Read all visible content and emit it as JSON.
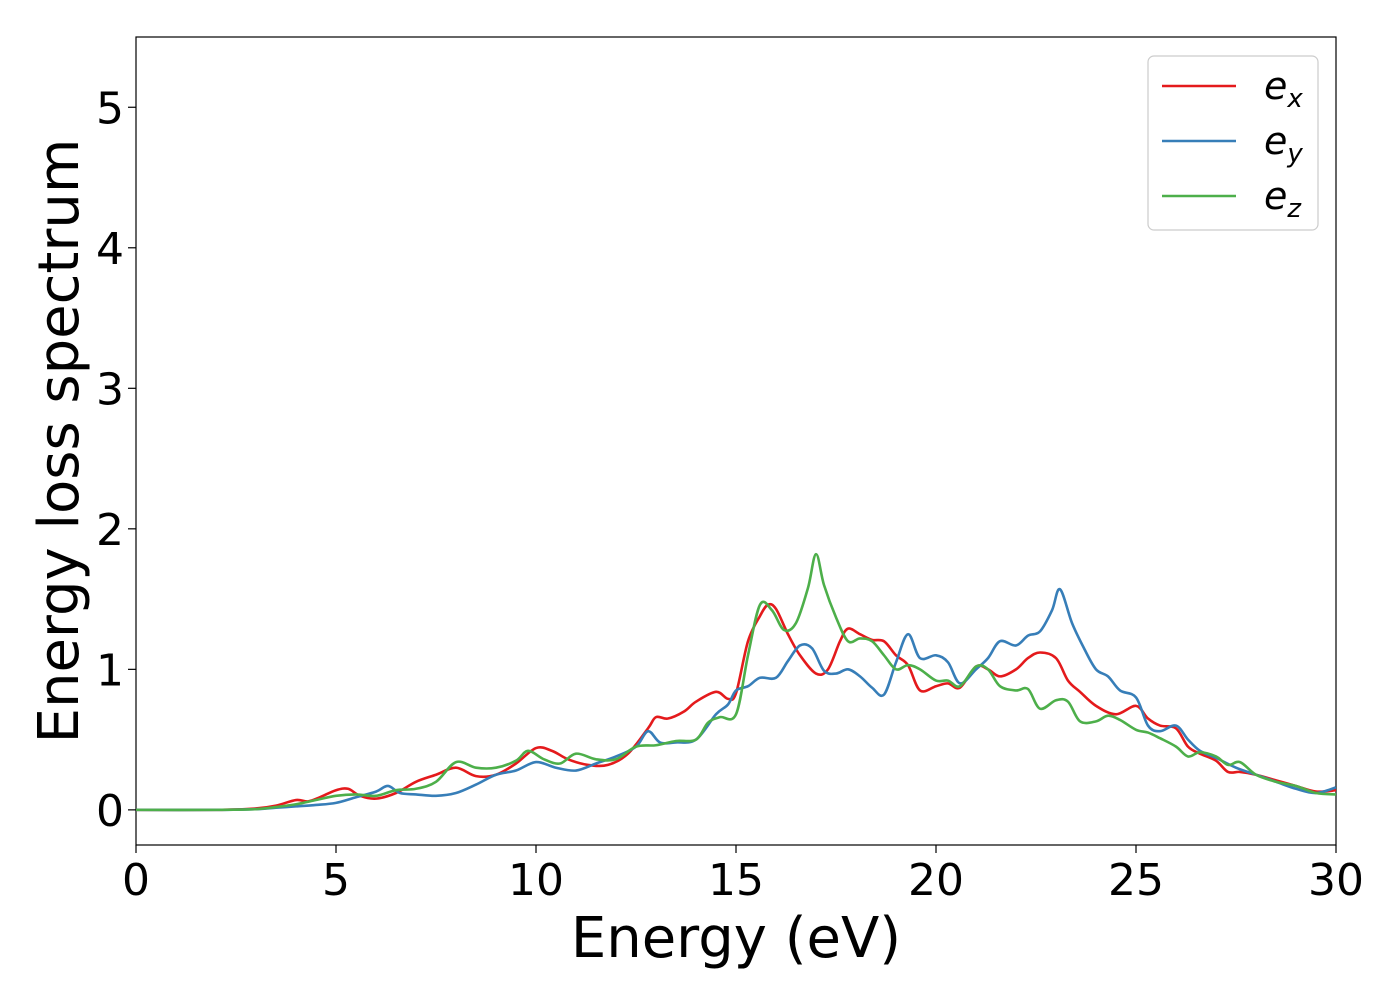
{
  "chart_data": {
    "type": "line",
    "xlabel": "Energy (eV)",
    "ylabel": "Energy loss spectrum",
    "xlim": [
      0,
      30
    ],
    "ylim": [
      -0.25,
      5.5
    ],
    "x_ticks": [
      0,
      5,
      10,
      15,
      20,
      25,
      30
    ],
    "y_ticks": [
      0,
      1,
      2,
      3,
      4,
      5
    ],
    "grid": false,
    "legend_position": "top-right",
    "series": [
      {
        "name": "e",
        "subscript": "x",
        "color": "#e41a1c",
        "points": [
          [
            0,
            0
          ],
          [
            2,
            0
          ],
          [
            3,
            0.01
          ],
          [
            3.5,
            0.03
          ],
          [
            4,
            0.07
          ],
          [
            4.3,
            0.06
          ],
          [
            4.6,
            0.09
          ],
          [
            5,
            0.14
          ],
          [
            5.3,
            0.15
          ],
          [
            5.6,
            0.1
          ],
          [
            6,
            0.08
          ],
          [
            6.5,
            0.12
          ],
          [
            7,
            0.2
          ],
          [
            7.5,
            0.25
          ],
          [
            8,
            0.3
          ],
          [
            8.5,
            0.24
          ],
          [
            9,
            0.25
          ],
          [
            9.5,
            0.33
          ],
          [
            10,
            0.44
          ],
          [
            10.4,
            0.42
          ],
          [
            10.8,
            0.36
          ],
          [
            11.3,
            0.32
          ],
          [
            11.8,
            0.32
          ],
          [
            12.3,
            0.4
          ],
          [
            12.8,
            0.58
          ],
          [
            13,
            0.66
          ],
          [
            13.3,
            0.65
          ],
          [
            13.7,
            0.7
          ],
          [
            14,
            0.77
          ],
          [
            14.5,
            0.84
          ],
          [
            14.8,
            0.79
          ],
          [
            15,
            0.83
          ],
          [
            15.3,
            1.2
          ],
          [
            15.6,
            1.38
          ],
          [
            15.8,
            1.46
          ],
          [
            16,
            1.43
          ],
          [
            16.3,
            1.25
          ],
          [
            16.6,
            1.1
          ],
          [
            17,
            0.97
          ],
          [
            17.3,
            1.0
          ],
          [
            17.6,
            1.2
          ],
          [
            17.8,
            1.29
          ],
          [
            18.1,
            1.25
          ],
          [
            18.4,
            1.21
          ],
          [
            18.7,
            1.2
          ],
          [
            19,
            1.1
          ],
          [
            19.3,
            1.03
          ],
          [
            19.6,
            0.85
          ],
          [
            20,
            0.88
          ],
          [
            20.3,
            0.9
          ],
          [
            20.6,
            0.87
          ],
          [
            21,
            1.02
          ],
          [
            21.3,
            1.0
          ],
          [
            21.6,
            0.95
          ],
          [
            22,
            1.0
          ],
          [
            22.3,
            1.08
          ],
          [
            22.6,
            1.12
          ],
          [
            23,
            1.08
          ],
          [
            23.3,
            0.92
          ],
          [
            23.6,
            0.84
          ],
          [
            24,
            0.74
          ],
          [
            24.5,
            0.68
          ],
          [
            25,
            0.74
          ],
          [
            25.3,
            0.65
          ],
          [
            25.6,
            0.6
          ],
          [
            26,
            0.58
          ],
          [
            26.3,
            0.45
          ],
          [
            26.6,
            0.4
          ],
          [
            27,
            0.35
          ],
          [
            27.3,
            0.27
          ],
          [
            27.6,
            0.27
          ],
          [
            28,
            0.25
          ],
          [
            28.5,
            0.21
          ],
          [
            29,
            0.17
          ],
          [
            29.5,
            0.13
          ],
          [
            30,
            0.14
          ]
        ]
      },
      {
        "name": "e",
        "subscript": "y",
        "color": "#377eb8",
        "points": [
          [
            0,
            0
          ],
          [
            2,
            0
          ],
          [
            3,
            0.005
          ],
          [
            3.5,
            0.015
          ],
          [
            4,
            0.025
          ],
          [
            4.5,
            0.035
          ],
          [
            5,
            0.05
          ],
          [
            5.5,
            0.09
          ],
          [
            6,
            0.13
          ],
          [
            6.3,
            0.17
          ],
          [
            6.6,
            0.12
          ],
          [
            7,
            0.11
          ],
          [
            7.5,
            0.1
          ],
          [
            8,
            0.12
          ],
          [
            8.5,
            0.18
          ],
          [
            9,
            0.25
          ],
          [
            9.5,
            0.28
          ],
          [
            10,
            0.34
          ],
          [
            10.5,
            0.3
          ],
          [
            11,
            0.28
          ],
          [
            11.5,
            0.33
          ],
          [
            12,
            0.38
          ],
          [
            12.5,
            0.45
          ],
          [
            12.8,
            0.56
          ],
          [
            13.1,
            0.48
          ],
          [
            13.5,
            0.48
          ],
          [
            14,
            0.5
          ],
          [
            14.5,
            0.68
          ],
          [
            14.8,
            0.75
          ],
          [
            15,
            0.85
          ],
          [
            15.3,
            0.88
          ],
          [
            15.6,
            0.94
          ],
          [
            16,
            0.94
          ],
          [
            16.3,
            1.06
          ],
          [
            16.6,
            1.17
          ],
          [
            16.9,
            1.15
          ],
          [
            17.2,
            0.99
          ],
          [
            17.5,
            0.97
          ],
          [
            17.8,
            1.0
          ],
          [
            18.1,
            0.95
          ],
          [
            18.4,
            0.87
          ],
          [
            18.7,
            0.82
          ],
          [
            19,
            1.05
          ],
          [
            19.3,
            1.25
          ],
          [
            19.6,
            1.08
          ],
          [
            20,
            1.1
          ],
          [
            20.3,
            1.05
          ],
          [
            20.6,
            0.9
          ],
          [
            21,
            1.0
          ],
          [
            21.3,
            1.08
          ],
          [
            21.6,
            1.2
          ],
          [
            22,
            1.17
          ],
          [
            22.3,
            1.24
          ],
          [
            22.6,
            1.27
          ],
          [
            22.9,
            1.42
          ],
          [
            23.1,
            1.57
          ],
          [
            23.4,
            1.33
          ],
          [
            23.7,
            1.15
          ],
          [
            24,
            1.0
          ],
          [
            24.3,
            0.95
          ],
          [
            24.6,
            0.85
          ],
          [
            25,
            0.8
          ],
          [
            25.3,
            0.6
          ],
          [
            25.6,
            0.56
          ],
          [
            26,
            0.6
          ],
          [
            26.3,
            0.5
          ],
          [
            26.6,
            0.42
          ],
          [
            27,
            0.37
          ],
          [
            27.5,
            0.3
          ],
          [
            28,
            0.25
          ],
          [
            28.5,
            0.2
          ],
          [
            29,
            0.15
          ],
          [
            29.5,
            0.12
          ],
          [
            30,
            0.16
          ]
        ]
      },
      {
        "name": "e",
        "subscript": "z",
        "color": "#4daf4a",
        "points": [
          [
            0,
            0
          ],
          [
            2,
            0
          ],
          [
            3,
            0.005
          ],
          [
            3.5,
            0.02
          ],
          [
            4,
            0.04
          ],
          [
            4.5,
            0.07
          ],
          [
            5,
            0.1
          ],
          [
            5.5,
            0.11
          ],
          [
            6,
            0.1
          ],
          [
            6.5,
            0.14
          ],
          [
            7,
            0.15
          ],
          [
            7.5,
            0.2
          ],
          [
            8,
            0.34
          ],
          [
            8.5,
            0.3
          ],
          [
            9,
            0.3
          ],
          [
            9.5,
            0.35
          ],
          [
            9.8,
            0.42
          ],
          [
            10.2,
            0.36
          ],
          [
            10.6,
            0.33
          ],
          [
            11,
            0.4
          ],
          [
            11.5,
            0.36
          ],
          [
            12,
            0.36
          ],
          [
            12.5,
            0.45
          ],
          [
            13,
            0.46
          ],
          [
            13.5,
            0.49
          ],
          [
            14,
            0.5
          ],
          [
            14.3,
            0.62
          ],
          [
            14.6,
            0.66
          ],
          [
            15,
            0.68
          ],
          [
            15.3,
            1.1
          ],
          [
            15.6,
            1.46
          ],
          [
            15.9,
            1.42
          ],
          [
            16.2,
            1.28
          ],
          [
            16.5,
            1.33
          ],
          [
            16.8,
            1.58
          ],
          [
            17,
            1.82
          ],
          [
            17.2,
            1.6
          ],
          [
            17.5,
            1.37
          ],
          [
            17.8,
            1.2
          ],
          [
            18.1,
            1.22
          ],
          [
            18.4,
            1.2
          ],
          [
            18.7,
            1.1
          ],
          [
            19,
            1.0
          ],
          [
            19.3,
            1.03
          ],
          [
            19.6,
            1.0
          ],
          [
            20,
            0.92
          ],
          [
            20.3,
            0.92
          ],
          [
            20.6,
            0.88
          ],
          [
            21,
            1.02
          ],
          [
            21.3,
            1.0
          ],
          [
            21.6,
            0.88
          ],
          [
            22,
            0.85
          ],
          [
            22.3,
            0.86
          ],
          [
            22.6,
            0.72
          ],
          [
            23,
            0.78
          ],
          [
            23.3,
            0.77
          ],
          [
            23.6,
            0.63
          ],
          [
            24,
            0.63
          ],
          [
            24.3,
            0.67
          ],
          [
            24.6,
            0.64
          ],
          [
            25,
            0.57
          ],
          [
            25.3,
            0.55
          ],
          [
            25.6,
            0.51
          ],
          [
            26,
            0.45
          ],
          [
            26.3,
            0.38
          ],
          [
            26.6,
            0.41
          ],
          [
            27,
            0.38
          ],
          [
            27.3,
            0.32
          ],
          [
            27.6,
            0.34
          ],
          [
            28,
            0.25
          ],
          [
            28.5,
            0.2
          ],
          [
            29,
            0.17
          ],
          [
            29.5,
            0.12
          ],
          [
            30,
            0.11
          ]
        ]
      }
    ]
  }
}
